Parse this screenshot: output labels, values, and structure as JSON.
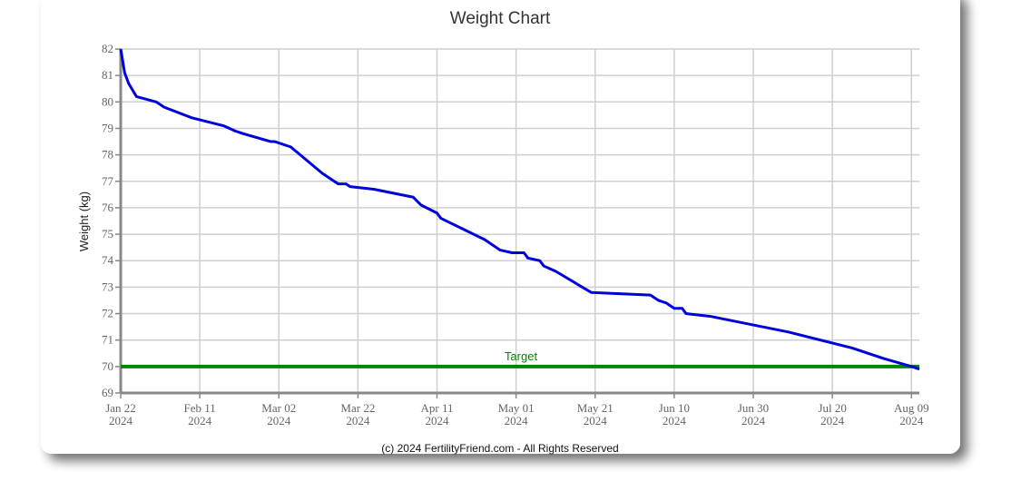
{
  "chart_data": {
    "type": "line",
    "title": "Weight Chart",
    "ylabel": "Weight (kg)",
    "footer": "(c) 2024 FertilityFriend.com - All Rights Reserved",
    "color": "#0000dd",
    "x": [
      "2024-01-22",
      "2024-01-23",
      "2024-01-24",
      "2024-01-26",
      "2024-01-31",
      "2024-02-02",
      "2024-02-09",
      "2024-02-17",
      "2024-02-20",
      "2024-02-22",
      "2024-02-29",
      "2024-03-01",
      "2024-03-05",
      "2024-03-13",
      "2024-03-17",
      "2024-03-19",
      "2024-03-20",
      "2024-03-26",
      "2024-04-05",
      "2024-04-07",
      "2024-04-11",
      "2024-04-12",
      "2024-04-23",
      "2024-04-27",
      "2024-04-30",
      "2024-05-03",
      "2024-05-04",
      "2024-05-07",
      "2024-05-08",
      "2024-05-11",
      "2024-05-20",
      "2024-06-04",
      "2024-06-06",
      "2024-06-08",
      "2024-06-10",
      "2024-06-12",
      "2024-06-13",
      "2024-06-19",
      "2024-07-09",
      "2024-07-25",
      "2024-08-02",
      "2024-08-09",
      "2024-08-11"
    ],
    "values": [
      82.0,
      81.1,
      80.7,
      80.2,
      80.0,
      79.8,
      79.4,
      79.1,
      78.9,
      78.8,
      78.5,
      78.5,
      78.3,
      77.3,
      76.9,
      76.9,
      76.8,
      76.7,
      76.4,
      76.1,
      75.8,
      75.6,
      74.8,
      74.4,
      74.3,
      74.3,
      74.1,
      74.0,
      73.8,
      73.6,
      72.8,
      72.7,
      72.5,
      72.4,
      72.2,
      72.2,
      72.0,
      71.9,
      71.3,
      70.7,
      70.3,
      70.0,
      69.9
    ],
    "target": {
      "value": 70,
      "label": "Target",
      "color": "#008800"
    },
    "xlim": [
      "2024-01-22",
      "2024-08-11"
    ],
    "xticks": [
      {
        "value": "2024-01-22",
        "label": [
          "Jan 22",
          "2024"
        ]
      },
      {
        "value": "2024-02-11",
        "label": [
          "Feb 11",
          "2024"
        ]
      },
      {
        "value": "2024-03-02",
        "label": [
          "Mar 02",
          "2024"
        ]
      },
      {
        "value": "2024-03-22",
        "label": [
          "Mar 22",
          "2024"
        ]
      },
      {
        "value": "2024-04-11",
        "label": [
          "Apr 11",
          "2024"
        ]
      },
      {
        "value": "2024-05-01",
        "label": [
          "May 01",
          "2024"
        ]
      },
      {
        "value": "2024-05-21",
        "label": [
          "May 21",
          "2024"
        ]
      },
      {
        "value": "2024-06-10",
        "label": [
          "Jun 10",
          "2024"
        ]
      },
      {
        "value": "2024-06-30",
        "label": [
          "Jun 30",
          "2024"
        ]
      },
      {
        "value": "2024-07-20",
        "label": [
          "Jul 20",
          "2024"
        ]
      },
      {
        "value": "2024-08-09",
        "label": [
          "Aug 09",
          "2024"
        ]
      }
    ],
    "ylim": [
      69,
      82
    ],
    "yticks": [
      69,
      70,
      71,
      72,
      73,
      74,
      75,
      76,
      77,
      78,
      79,
      80,
      81,
      82
    ],
    "grid": true
  }
}
